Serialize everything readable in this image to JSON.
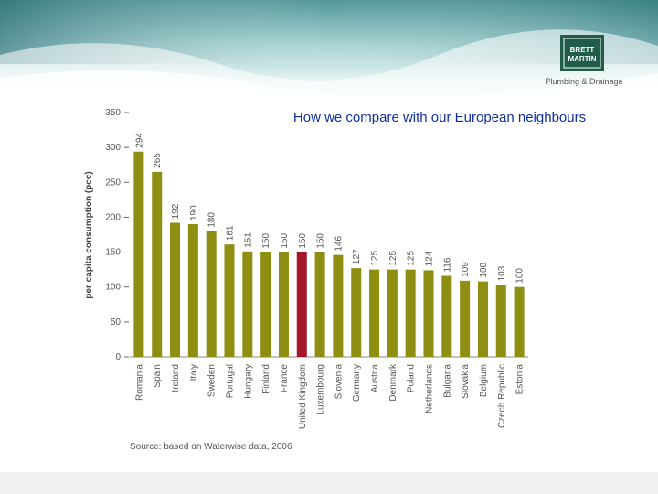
{
  "logo": {
    "line1": "BRETT",
    "line2": "MARTIN",
    "tagline": "Plumbing & Drainage"
  },
  "chart_data": {
    "type": "bar",
    "title": "How we compare with our European neighbours",
    "y_label": "per capita consumption (pcc)",
    "source": "Source: based on Waterwise data, 2006",
    "categories": [
      "Romania",
      "Spain",
      "Ireland",
      "Italy",
      "Sweden",
      "Portugal",
      "Hungary",
      "Finland",
      "France",
      "United Kingdom",
      "Luxembourg",
      "Slovenia",
      "Germany",
      "Austria",
      "Denmark",
      "Poland",
      "Netherlands",
      "Bulgaria",
      "Slovakia",
      "Belgium",
      "Czech Republic",
      "Estonia"
    ],
    "values": [
      294,
      265,
      192,
      190,
      180,
      161,
      151,
      150,
      150,
      150,
      150,
      146,
      127,
      125,
      125,
      125,
      124,
      116,
      109,
      108,
      103,
      100
    ],
    "colors": [
      "#8e8e12",
      "#8e8e12",
      "#8e8e12",
      "#8e8e12",
      "#8e8e12",
      "#8e8e12",
      "#8e8e12",
      "#8e8e12",
      "#8e8e12",
      "#a3162b",
      "#8e8e12",
      "#8e8e12",
      "#8e8e12",
      "#8e8e12",
      "#8e8e12",
      "#8e8e12",
      "#8e8e12",
      "#8e8e12",
      "#8e8e12",
      "#8e8e12",
      "#8e8e12",
      "#8e8e12"
    ],
    "ylim": [
      0,
      350
    ],
    "yticks": [
      0,
      50,
      100,
      150,
      200,
      250,
      300,
      350
    ],
    "grid": false
  }
}
